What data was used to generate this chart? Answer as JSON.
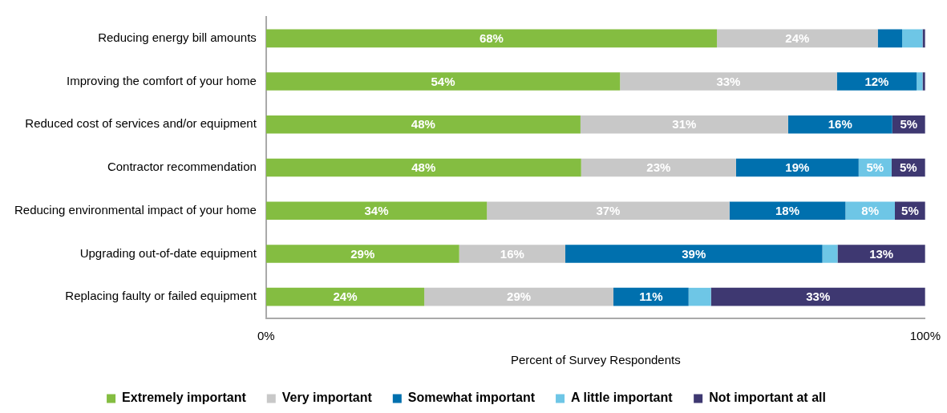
{
  "chart_data": {
    "type": "bar",
    "orientation": "horizontal",
    "stacked": true,
    "xlabel": "Percent of Survey Respondents",
    "categories": [
      "Reducing energy bill amounts",
      "Improving the comfort of your home",
      "Reduced cost of services and/or equipment",
      "Contractor recommendation",
      "Reducing environmental impact of your home",
      "Upgrading out-of-date equipment",
      "Replacing faulty or failed equipment"
    ],
    "series": [
      {
        "name": "Extremely important",
        "color": "#84bd41",
        "values": [
          68.4,
          53.7,
          47.7,
          47.8,
          33.5,
          29.3,
          24
        ],
        "value_labels": [
          "68%",
          "54%",
          "48%",
          "48%",
          "34%",
          "29%",
          "24%"
        ]
      },
      {
        "name": "Very important",
        "color": "#c8c8c8",
        "values": [
          24.4,
          32.9,
          31.5,
          23.5,
          36.8,
          16.1,
          28.7
        ],
        "value_labels": [
          "24%",
          "33%",
          "31%",
          "23%",
          "37%",
          "16%",
          "29%"
        ]
      },
      {
        "name": "Somewhat important",
        "color": "#0070ae",
        "values": [
          3.7,
          12.1,
          15.8,
          18.6,
          17.6,
          39,
          11.4
        ],
        "value_labels": [
          null,
          "12%",
          "16%",
          "19%",
          "18%",
          "39%",
          "11%"
        ]
      },
      {
        "name": "A little important",
        "color": "#6ec6e6",
        "values": [
          3.1,
          0.9,
          null,
          5,
          7.5,
          2.3,
          3.4
        ],
        "value_labels": [
          null,
          null,
          null,
          "5%",
          "8%",
          null,
          null
        ]
      },
      {
        "name": "Not important at all",
        "color": "#3e3871",
        "values": [
          0.4,
          0.4,
          5,
          5.1,
          4.6,
          13.3,
          32.5
        ],
        "value_labels": [
          null,
          null,
          "5%",
          "5%",
          "5%",
          "13%",
          "33%"
        ]
      }
    ],
    "xlim": [
      0,
      100
    ],
    "xticks": [
      {
        "value": 0,
        "label": "0%"
      },
      {
        "value": 100,
        "label": "100%"
      }
    ],
    "grid": false,
    "legend": "bottom"
  }
}
